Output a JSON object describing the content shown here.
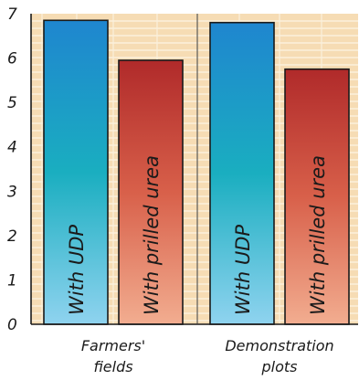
{
  "chart_data": {
    "type": "bar",
    "groups": [
      {
        "category": "Farmers' fields",
        "category_lines": [
          "Farmers'",
          "fields"
        ],
        "bars": [
          {
            "label": "With UDP",
            "value": 6.85,
            "style": "blue"
          },
          {
            "label": "With prilled urea",
            "value": 5.95,
            "style": "red"
          }
        ]
      },
      {
        "category": "Demonstration plots",
        "category_lines": [
          "Demonstration",
          "plots"
        ],
        "bars": [
          {
            "label": "With UDP",
            "value": 6.8,
            "style": "blue"
          },
          {
            "label": "With prilled urea",
            "value": 5.75,
            "style": "red"
          }
        ]
      }
    ],
    "ylim": [
      0,
      7
    ],
    "yticks": [
      "0",
      "1",
      "2",
      "3",
      "4",
      "5",
      "6",
      "7"
    ],
    "title": "",
    "xlabel": "",
    "ylabel": "",
    "grid": true,
    "colors": {
      "blue_top": "#1f86cf",
      "blue_mid": "#1aaec0",
      "blue_bottom": "#8fd3ef",
      "red_top": "#b02a2a",
      "red_mid": "#d8604a",
      "red_bottom": "#f2ad90",
      "background": "#f6dcb4",
      "grid": "#fbf0dc"
    }
  }
}
